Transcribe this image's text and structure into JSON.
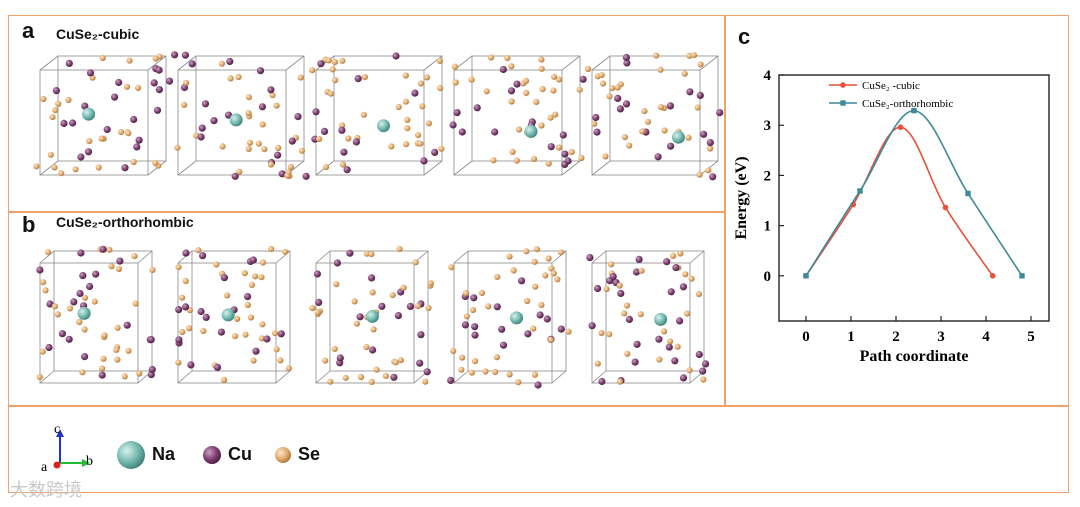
{
  "panels": {
    "a": {
      "label": "a",
      "title": "CuSe₂-cubic"
    },
    "b": {
      "label": "b",
      "title": "CuSe₂-orthorhombic"
    },
    "c": {
      "label": "c"
    }
  },
  "species_legend": [
    {
      "symbol": "Na",
      "color": "#6fb7ad"
    },
    {
      "symbol": "Cu",
      "color": "#7a3c6e"
    },
    {
      "symbol": "Se",
      "color": "#e0a96a"
    }
  ],
  "axes_triad": {
    "c": "c",
    "a": "a",
    "b": "b"
  },
  "watermark": "大数跨境",
  "chart_data": {
    "type": "line",
    "xlabel": "Path coordinate",
    "ylabel": "Energy (eV)",
    "xlim": [
      -0.6,
      5.4
    ],
    "ylim": [
      -0.9,
      4
    ],
    "xticks": [
      0,
      1,
      2,
      3,
      4,
      5
    ],
    "yticks": [
      0,
      1,
      2,
      3,
      4
    ],
    "series": [
      {
        "name": "CuSe₂ -cubic",
        "color": "#e8513a",
        "marker": "circle",
        "x": [
          0,
          1.05,
          2.1,
          3.1,
          4.15
        ],
        "y": [
          0,
          1.42,
          2.96,
          1.36,
          0
        ]
      },
      {
        "name": "CuSe₂-orthorhombic",
        "color": "#3e8a98",
        "marker": "square",
        "x": [
          0,
          1.2,
          2.4,
          3.6,
          4.8
        ],
        "y": [
          0,
          1.69,
          3.29,
          1.64,
          0
        ]
      }
    ]
  }
}
